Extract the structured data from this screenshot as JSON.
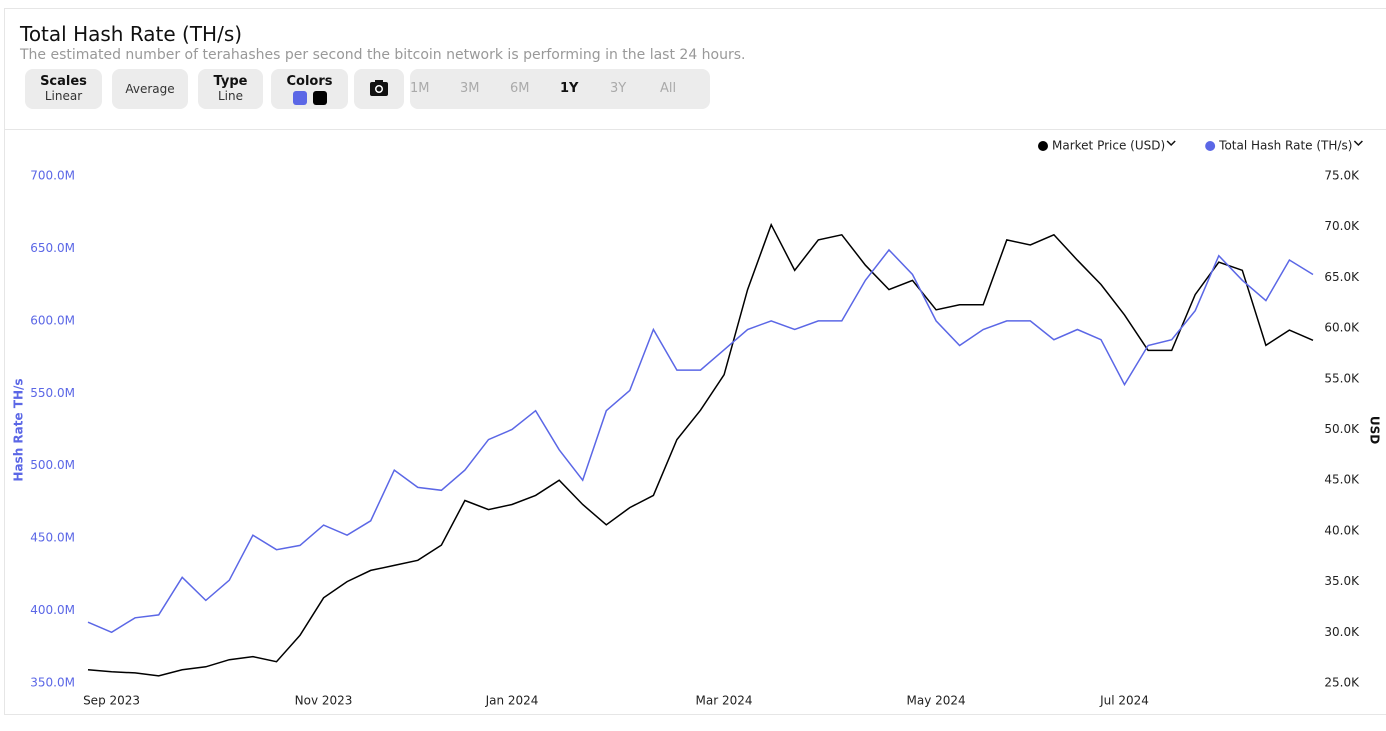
{
  "header": {
    "title": "Total Hash Rate (TH/s)",
    "subtitle": "The estimated number of terahashes per second the bitcoin network is performing in the last 24 hours.",
    "toolbar": {
      "scales": {
        "label": "Scales",
        "value": "Linear"
      },
      "average": "Average",
      "type": {
        "label": "Type",
        "value": "Line"
      },
      "colors": {
        "label": "Colors"
      },
      "ranges": [
        "1M",
        "3M",
        "6M",
        "1Y",
        "3Y",
        "All"
      ],
      "active_range": "1Y"
    }
  },
  "chart_data": {
    "type": "line",
    "categories": [
      null,
      "Sep 2023",
      null,
      null,
      null,
      null,
      null,
      null,
      null,
      null,
      "Nov 2023",
      null,
      null,
      null,
      null,
      null,
      null,
      null,
      "Jan 2024",
      null,
      null,
      null,
      null,
      null,
      null,
      null,
      null,
      "Mar 2024",
      null,
      null,
      null,
      null,
      null,
      null,
      null,
      null,
      "May 2024",
      null,
      null,
      null,
      null,
      null,
      null,
      null,
      "Jul 2024",
      null,
      null,
      null,
      null,
      null,
      null,
      null,
      null
    ],
    "series": [
      {
        "name": "Market Price (USD)",
        "color": "#000000",
        "axis": "y2",
        "values": [
          26300,
          26100,
          26000,
          25700,
          26300,
          26600,
          27300,
          27600,
          27100,
          29700,
          33400,
          35000,
          36100,
          36600,
          37100,
          38600,
          43000,
          42100,
          42600,
          43500,
          45000,
          42600,
          40600,
          42300,
          43500,
          49000,
          51900,
          55400,
          63800,
          70200,
          65700,
          68700,
          69200,
          66200,
          63800,
          64700,
          61800,
          62300,
          62300,
          68700,
          68200,
          69200,
          66700,
          64300,
          61300,
          57800,
          57800,
          63300,
          66500,
          65700,
          58300,
          59800,
          58800
        ]
      },
      {
        "name": "Total Hash Rate (TH/s)",
        "color": "#5b67e6",
        "values": [
          392000000,
          385000000,
          395000000,
          397000000,
          423000000,
          407000000,
          421000000,
          452000000,
          442000000,
          445000000,
          459000000,
          452000000,
          462000000,
          497000000,
          485000000,
          483000000,
          497000000,
          518000000,
          525000000,
          538000000,
          511000000,
          490000000,
          538000000,
          552000000,
          594000000,
          566000000,
          566000000,
          580000000,
          594000000,
          600000000,
          594000000,
          600000000,
          600000000,
          628000000,
          649000000,
          632000000,
          600000000,
          583000000,
          594000000,
          600000000,
          600000000,
          587000000,
          594000000,
          587000000,
          556000000,
          583000000,
          587000000,
          607000000,
          645000000,
          628000000,
          614000000,
          642000000,
          632000000
        ]
      }
    ],
    "ylabel": "Hash Rate TH/s",
    "y2label": "USD",
    "ylim": [
      350000000,
      700000000
    ],
    "yticks": [
      {
        "value": 350000000,
        "label": "350.0M"
      },
      {
        "value": 400000000,
        "label": "400.0M"
      },
      {
        "value": 450000000,
        "label": "450.0M"
      },
      {
        "value": 500000000,
        "label": "500.0M"
      },
      {
        "value": 550000000,
        "label": "550.0M"
      },
      {
        "value": 600000000,
        "label": "600.0M"
      },
      {
        "value": 650000000,
        "label": "650.0M"
      },
      {
        "value": 700000000,
        "label": "700.0M"
      }
    ],
    "y2lim": [
      25000,
      75000
    ],
    "y2ticks": [
      {
        "value": 25000,
        "label": "25.0K"
      },
      {
        "value": 30000,
        "label": "30.0K"
      },
      {
        "value": 35000,
        "label": "35.0K"
      },
      {
        "value": 40000,
        "label": "40.0K"
      },
      {
        "value": 45000,
        "label": "45.0K"
      },
      {
        "value": 50000,
        "label": "50.0K"
      },
      {
        "value": 55000,
        "label": "55.0K"
      },
      {
        "value": 60000,
        "label": "60.0K"
      },
      {
        "value": 65000,
        "label": "65.0K"
      },
      {
        "value": 70000,
        "label": "70.0K"
      },
      {
        "value": 75000,
        "label": "75.0K"
      }
    ],
    "grid": false,
    "legend": "top-right"
  }
}
